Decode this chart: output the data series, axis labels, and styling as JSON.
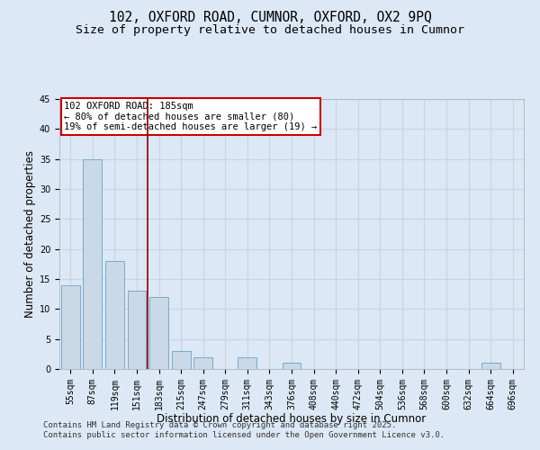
{
  "title1": "102, OXFORD ROAD, CUMNOR, OXFORD, OX2 9PQ",
  "title2": "Size of property relative to detached houses in Cumnor",
  "xlabel": "Distribution of detached houses by size in Cumnor",
  "ylabel": "Number of detached properties",
  "categories": [
    "55sqm",
    "87sqm",
    "119sqm",
    "151sqm",
    "183sqm",
    "215sqm",
    "247sqm",
    "279sqm",
    "311sqm",
    "343sqm",
    "376sqm",
    "408sqm",
    "440sqm",
    "472sqm",
    "504sqm",
    "536sqm",
    "568sqm",
    "600sqm",
    "632sqm",
    "664sqm",
    "696sqm"
  ],
  "values": [
    14,
    35,
    18,
    13,
    12,
    3,
    2,
    0,
    2,
    0,
    1,
    0,
    0,
    0,
    0,
    0,
    0,
    0,
    0,
    1,
    0
  ],
  "bar_color": "#c9d9e8",
  "bar_edge_color": "#7aaacb",
  "grid_color": "#c5d5e5",
  "background_color": "#dce8f5",
  "vline_x": 3.5,
  "vline_color": "#8b0000",
  "annotation_text": "102 OXFORD ROAD: 185sqm\n← 80% of detached houses are smaller (80)\n19% of semi-detached houses are larger (19) →",
  "annotation_box_color": "#ffffff",
  "annotation_box_edge_color": "#cc0000",
  "ylim": [
    0,
    45
  ],
  "yticks": [
    0,
    5,
    10,
    15,
    20,
    25,
    30,
    35,
    40,
    45
  ],
  "footer1": "Contains HM Land Registry data © Crown copyright and database right 2025.",
  "footer2": "Contains public sector information licensed under the Open Government Licence v3.0.",
  "title_fontsize": 10.5,
  "title2_fontsize": 9.5,
  "axis_label_fontsize": 8.5,
  "tick_fontsize": 7,
  "annotation_fontsize": 7.5,
  "footer_fontsize": 6.5
}
